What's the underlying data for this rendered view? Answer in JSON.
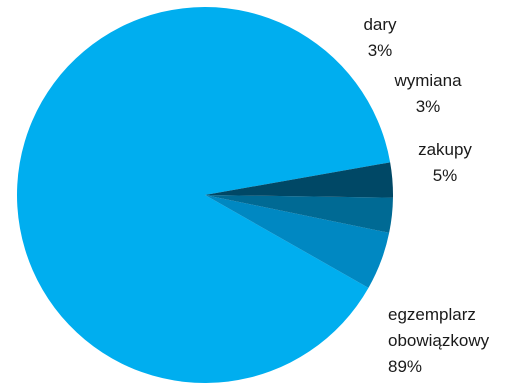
{
  "chart_data": {
    "type": "pie",
    "title": "",
    "categories": [
      "egzemplarz obowiązkowy",
      "zakupy",
      "wymiana",
      "dary"
    ],
    "values": [
      89,
      5,
      3,
      3
    ],
    "value_labels": [
      "89%",
      "5%",
      "3%",
      "3%"
    ],
    "label_lines": [
      [
        "egzemplarz",
        "obowiązkowy",
        "89%"
      ],
      [
        "zakupy",
        "5%"
      ],
      [
        "wymiana",
        "3%"
      ],
      [
        "dary",
        "3%"
      ]
    ],
    "colors": [
      "#00AEEF",
      "#0088C2",
      "#006A94",
      "#004866"
    ],
    "start_angle_deg": 10,
    "direction": "counterclockwise",
    "legend": "none"
  }
}
